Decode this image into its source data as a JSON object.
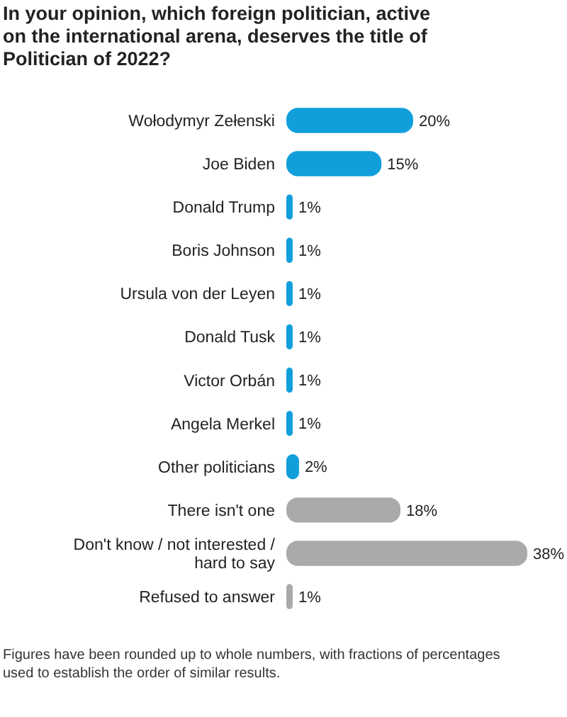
{
  "chart_data": {
    "type": "bar",
    "orientation": "horizontal",
    "title": "In your opinion, which foreign politician, active on the international arena, deserves the title of Politician of 2022?",
    "categories": [
      "Wołodymyr Zełenski",
      "Joe Biden",
      "Donald Trump",
      "Boris Johnson",
      "Ursula von der Leyen",
      "Donald Tusk",
      "Victor Orbán",
      "Angela Merkel",
      "Other politicians",
      "There isn't one",
      "Don't know / not interested / hard to say",
      "Refused to answer"
    ],
    "values": [
      20,
      15,
      1,
      1,
      1,
      1,
      1,
      1,
      2,
      18,
      38,
      1
    ],
    "colors": [
      "#119fdc",
      "#119fdc",
      "#119fdc",
      "#119fdc",
      "#119fdc",
      "#119fdc",
      "#119fdc",
      "#119fdc",
      "#119fdc",
      "#aaaaaa",
      "#aaaaaa",
      "#aaaaaa"
    ],
    "value_labels": [
      "20%",
      "15%",
      "1%",
      "1%",
      "1%",
      "1%",
      "1%",
      "1%",
      "2%",
      "18%",
      "38%",
      "1%"
    ],
    "annotations": [
      "Figures have been rounded up to whole numbers, with fractions of percentages used to establish the order of similar results."
    ]
  }
}
